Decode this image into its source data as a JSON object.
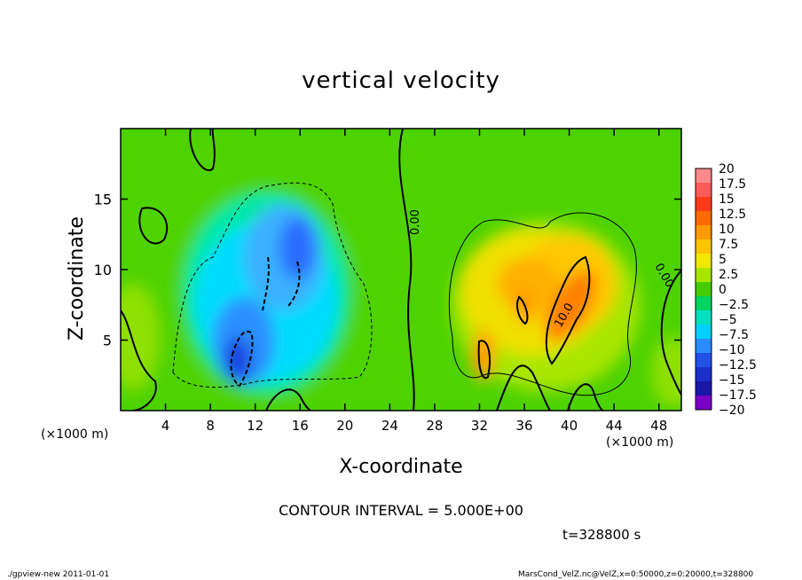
{
  "chart_data": {
    "type": "heatmap",
    "title": "vertical velocity",
    "xlabel": "X-coordinate",
    "ylabel": "Z-coordinate",
    "x_unit": "(×1000 m)",
    "xlim": [
      0,
      50
    ],
    "ylim": [
      0,
      20
    ],
    "x_ticks": [
      "4",
      "8",
      "12",
      "16",
      "20",
      "24",
      "28",
      "32",
      "36",
      "40",
      "44",
      "48"
    ],
    "y_ticks": [
      "5",
      "10",
      "15"
    ],
    "colorbar": {
      "labels": [
        "20",
        "17.5",
        "15",
        "12.5",
        "10",
        "7.5",
        "5",
        "2.5",
        "0",
        "−2.5",
        "−5",
        "−7.5",
        "−10",
        "−12.5",
        "−15",
        "−17.5",
        "−20"
      ],
      "colors": [
        "#ff8a8a",
        "#ff5a5a",
        "#ff3a1a",
        "#ff6a00",
        "#ff9a00",
        "#ffc400",
        "#f0e800",
        "#a8e600",
        "#44cc00",
        "#00d460",
        "#00e0c0",
        "#00cfff",
        "#2a8cff",
        "#2050e8",
        "#1a2ec8",
        "#1a16a8",
        "#7a00c8"
      ]
    },
    "contour_labels": [
      "0.00",
      "0.00",
      "10.0"
    ],
    "contour_interval": "CONTOUR INTERVAL = 5.000E+00",
    "time": "t=328800 s",
    "regions": [
      {
        "kind": "downdraft",
        "x_range": [
          6,
          24
        ],
        "z_range": [
          1.5,
          16
        ],
        "min_value": -12.5
      },
      {
        "kind": "updraft",
        "x_range": [
          29,
          47
        ],
        "z_range": [
          1.5,
          14
        ],
        "max_value": 12
      }
    ]
  },
  "footer": {
    "left": "./gpview-new   2011-01-01",
    "right": "MarsCond_VelZ.nc@VelZ,x=0:50000,z=0:20000,t=328800"
  }
}
